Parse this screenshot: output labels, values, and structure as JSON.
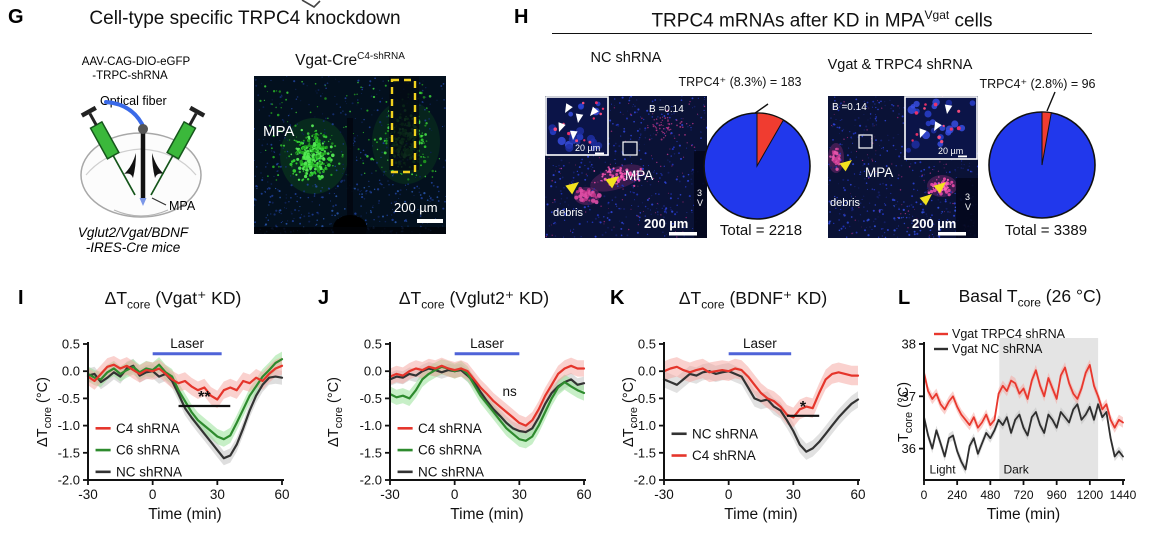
{
  "panel_g": {
    "label": "G",
    "title": "Cell-type specific TRPC4 knockdown",
    "diagram": {
      "virus_line1": "AAV-CAG-DIO-eGFP",
      "virus_line2": "-TRPC-shRNA",
      "fiber_label": "Optical fiber",
      "target_label": "MPA",
      "mouse_line1": "Vglut2/Vgat/BDNF",
      "mouse_line2": "-IRES-Cre mice"
    },
    "micrograph": {
      "title_pre": "Vgat-Cre",
      "title_sup": "C4-shRNA",
      "region_label": "MPA",
      "scalebar_label": "200 µm"
    }
  },
  "panel_h": {
    "label": "H",
    "title_pre": "TRPC4 mRNAs after KD in MPA",
    "title_sup": "Vgat",
    "title_post": " cells",
    "left": {
      "condition_label": "NC shRNA",
      "threshold_label": "B =0.14",
      "inset_scalebar_label": "20 µm",
      "region_label": "MPA",
      "debris_label": "debris",
      "scalebar_label": "200 µm",
      "ventricle_label_line1": "3",
      "ventricle_label_line2": "V"
    },
    "right": {
      "condition_label": "Vgat & TRPC4 shRNA",
      "threshold_label": "B =0.14",
      "inset_scalebar_label": "20 µm",
      "region_label": "MPA",
      "debris_label": "debris",
      "scalebar_label": "200 µm",
      "ventricle_label_line1": "3",
      "ventricle_label_line2": "V"
    }
  },
  "chart_data": [
    {
      "id": "I",
      "type": "line",
      "panel_label": "I",
      "title_pre": "ΔT",
      "title_sub": "core",
      "title_post": " (Vgat⁺ KD)",
      "ylabel_pre": "ΔT",
      "ylabel_sub": "core",
      "ylabel_post": " (°C)",
      "xlabel": "Time (min)",
      "xlim": [
        -30,
        60
      ],
      "ylim": [
        -2.0,
        0.5
      ],
      "ydec": 1,
      "xticks": [
        -30,
        0,
        30,
        60
      ],
      "yticks": [
        0.5,
        0.0,
        -0.5,
        -1.0,
        -1.5,
        -2.0
      ],
      "laser": {
        "label": "Laser",
        "x0": 0,
        "x1": 32,
        "y": 0.32,
        "color": "#4f63d8"
      },
      "legend": {
        "x0": -26.5,
        "x1": -19.5,
        "tx": -17,
        "rows": [
          {
            "label": "C4 shRNA",
            "color": "#e5352b",
            "y": -1.05
          },
          {
            "label": "C6 shRNA",
            "color": "#2e8b2e",
            "y": -1.45
          },
          {
            "label": "NC shRNA",
            "color": "#333333",
            "y": -1.85
          }
        ]
      },
      "annotations": [
        {
          "type": "sigline",
          "x0": 12,
          "x1": 36,
          "y": -0.64,
          "label": "**"
        }
      ],
      "x": [
        -30,
        -27,
        -24,
        -21,
        -18,
        -15,
        -12,
        -9,
        -6,
        -3,
        0,
        3,
        6,
        9,
        12,
        15,
        18,
        21,
        24,
        27,
        30,
        33,
        36,
        39,
        42,
        45,
        48,
        51,
        54,
        57,
        60
      ],
      "series": [
        {
          "name": "NC shRNA",
          "color": "#333333",
          "band": "#bdbdbd",
          "band_w": 0.13,
          "y": [
            -0.08,
            -0.05,
            -0.2,
            -0.12,
            -0.02,
            -0.1,
            0.05,
            0.1,
            -0.08,
            -0.02,
            0.0,
            -0.1,
            -0.05,
            -0.18,
            -0.42,
            -0.68,
            -0.85,
            -1.0,
            -1.15,
            -1.3,
            -1.45,
            -1.6,
            -1.55,
            -1.35,
            -1.05,
            -0.72,
            -0.45,
            -0.25,
            -0.12,
            -0.1,
            -0.12
          ]
        },
        {
          "name": "C6 shRNA",
          "color": "#2e8b2e",
          "band": "#8fe08f",
          "band_w": 0.14,
          "y": [
            -0.05,
            -0.12,
            -0.15,
            -0.02,
            0.05,
            -0.05,
            0.02,
            0.08,
            -0.02,
            0.05,
            0.02,
            0.12,
            -0.02,
            -0.1,
            -0.35,
            -0.55,
            -0.75,
            -0.9,
            -1.0,
            -1.1,
            -1.2,
            -1.25,
            -1.18,
            -0.95,
            -0.7,
            -0.45,
            -0.28,
            -0.1,
            0.02,
            0.15,
            0.22
          ]
        },
        {
          "name": "C4 shRNA",
          "color": "#e5352b",
          "band": "#f5a49d",
          "band_w": 0.16,
          "y": [
            -0.1,
            -0.18,
            -0.05,
            0.08,
            0.12,
            0.05,
            0.1,
            0.02,
            -0.05,
            0.02,
            0.0,
            0.05,
            -0.05,
            -0.15,
            -0.22,
            -0.18,
            -0.28,
            -0.35,
            -0.3,
            -0.45,
            -0.52,
            -0.35,
            -0.3,
            -0.35,
            -0.18,
            -0.22,
            -0.12,
            -0.18,
            -0.05,
            0.05,
            0.1
          ]
        }
      ]
    },
    {
      "id": "J",
      "type": "line",
      "panel_label": "J",
      "title_pre": "ΔT",
      "title_sub": "core",
      "title_post": " (Vglut2⁺ KD)",
      "ylabel_pre": "ΔT",
      "ylabel_sub": "core",
      "ylabel_post": " (°C)",
      "xlabel": "Time (min)",
      "xlim": [
        -30,
        60
      ],
      "ylim": [
        -2.0,
        0.5
      ],
      "ydec": 1,
      "xticks": [
        -30,
        0,
        30,
        60
      ],
      "yticks": [
        0.5,
        0.0,
        -0.5,
        -1.0,
        -1.5,
        -2.0
      ],
      "laser": {
        "label": "Laser",
        "x0": 0,
        "x1": 30,
        "y": 0.32,
        "color": "#4f63d8"
      },
      "legend": {
        "x0": -26.5,
        "x1": -19.5,
        "tx": -17,
        "rows": [
          {
            "label": "C4 shRNA",
            "color": "#e5352b",
            "y": -1.05
          },
          {
            "label": "C6 shRNA",
            "color": "#2e8b2e",
            "y": -1.45
          },
          {
            "label": "NC shRNA",
            "color": "#333333",
            "y": -1.85
          }
        ]
      },
      "annotations": [
        {
          "type": "text",
          "x": 25.5,
          "y": -0.46,
          "label": "ns"
        }
      ],
      "x": [
        -30,
        -27,
        -24,
        -21,
        -18,
        -15,
        -12,
        -9,
        -6,
        -3,
        0,
        3,
        6,
        9,
        12,
        15,
        18,
        21,
        24,
        27,
        30,
        33,
        36,
        39,
        42,
        45,
        48,
        51,
        54,
        57,
        60
      ],
      "series": [
        {
          "name": "NC shRNA",
          "color": "#333333",
          "band": "#bdbdbd",
          "band_w": 0.12,
          "y": [
            -0.15,
            -0.1,
            -0.12,
            -0.05,
            -0.08,
            0.0,
            0.05,
            0.02,
            -0.02,
            0.02,
            0.0,
            0.02,
            -0.08,
            -0.2,
            -0.38,
            -0.55,
            -0.7,
            -0.82,
            -0.95,
            -1.05,
            -1.1,
            -1.12,
            -1.05,
            -0.85,
            -0.6,
            -0.4,
            -0.28,
            -0.2,
            -0.15,
            -0.25,
            -0.22
          ]
        },
        {
          "name": "C6 shRNA",
          "color": "#2e8b2e",
          "band": "#8fe08f",
          "band_w": 0.14,
          "y": [
            -0.42,
            -0.48,
            -0.45,
            -0.5,
            -0.35,
            -0.15,
            -0.05,
            0.02,
            0.08,
            0.05,
            0.0,
            0.05,
            -0.05,
            -0.25,
            -0.45,
            -0.6,
            -0.75,
            -0.9,
            -1.05,
            -1.15,
            -1.25,
            -1.28,
            -1.2,
            -1.0,
            -0.75,
            -0.5,
            -0.3,
            -0.2,
            -0.28,
            -0.35,
            -0.4
          ]
        },
        {
          "name": "C4 shRNA",
          "color": "#e5352b",
          "band": "#f5a49d",
          "band_w": 0.15,
          "y": [
            -0.1,
            -0.05,
            -0.08,
            0.0,
            0.05,
            0.02,
            0.08,
            0.05,
            0.1,
            0.05,
            0.02,
            0.05,
            0.0,
            -0.15,
            -0.3,
            -0.42,
            -0.55,
            -0.65,
            -0.75,
            -0.85,
            -0.95,
            -1.0,
            -0.9,
            -0.7,
            -0.45,
            -0.25,
            -0.05,
            0.05,
            0.1,
            0.05,
            0.05
          ]
        }
      ]
    },
    {
      "id": "K",
      "type": "line",
      "panel_label": "K",
      "title_pre": "ΔT",
      "title_sub": "core",
      "title_post": " (BDNF⁺ KD)",
      "ylabel_pre": "ΔT",
      "ylabel_sub": "core",
      "ylabel_post": " (°C)",
      "xlabel": "Time (min)",
      "xlim": [
        -30,
        60
      ],
      "ylim": [
        -2.0,
        0.5
      ],
      "ydec": 1,
      "xticks": [
        -30,
        0,
        30,
        60
      ],
      "yticks": [
        0.5,
        0.0,
        -0.5,
        -1.0,
        -1.5,
        -2.0
      ],
      "laser": {
        "label": "Laser",
        "x0": 0,
        "x1": 29,
        "y": 0.32,
        "color": "#4f63d8"
      },
      "legend": {
        "x0": -26.5,
        "x1": -19.5,
        "tx": -17,
        "rows": [
          {
            "label": "NC shRNA",
            "color": "#333333",
            "y": -1.15
          },
          {
            "label": "C4 shRNA",
            "color": "#e5352b",
            "y": -1.55
          }
        ]
      },
      "annotations": [
        {
          "type": "sigline",
          "x0": 27,
          "x1": 42,
          "y": -0.82,
          "label": "*"
        }
      ],
      "x": [
        -30,
        -27,
        -24,
        -21,
        -18,
        -15,
        -12,
        -9,
        -6,
        -3,
        0,
        3,
        6,
        9,
        12,
        15,
        18,
        21,
        24,
        27,
        30,
        33,
        36,
        39,
        42,
        45,
        48,
        51,
        54,
        57,
        60
      ],
      "series": [
        {
          "name": "NC shRNA",
          "color": "#333333",
          "band": "#c4c4c4",
          "band_w": 0.15,
          "y": [
            -0.15,
            -0.2,
            -0.25,
            -0.15,
            -0.05,
            -0.08,
            -0.02,
            0.0,
            -0.05,
            -0.02,
            0.0,
            -0.05,
            -0.1,
            -0.3,
            -0.5,
            -0.55,
            -0.52,
            -0.65,
            -0.72,
            -0.9,
            -1.1,
            -1.35,
            -1.48,
            -1.42,
            -1.3,
            -1.15,
            -1.0,
            -0.85,
            -0.72,
            -0.6,
            -0.52
          ]
        },
        {
          "name": "C4 shRNA",
          "color": "#e5352b",
          "band": "#f5a49d",
          "band_w": 0.18,
          "y": [
            0.0,
            0.05,
            0.08,
            0.02,
            -0.02,
            0.02,
            0.05,
            -0.02,
            0.0,
            0.02,
            0.0,
            0.05,
            0.02,
            -0.1,
            -0.25,
            -0.4,
            -0.5,
            -0.55,
            -0.65,
            -0.8,
            -0.85,
            -0.7,
            -0.65,
            -0.68,
            -0.4,
            -0.15,
            -0.05,
            -0.02,
            -0.05,
            -0.08,
            -0.08
          ]
        }
      ]
    },
    {
      "id": "L",
      "type": "line",
      "panel_label": "L",
      "title_pre": "Basal T",
      "title_sub": "core",
      "title_post": " (26 °C)",
      "ylabel_pre": "T",
      "ylabel_sub": "core",
      "ylabel_post": " (°C)",
      "xlabel": "Time (min)",
      "xlim": [
        0,
        1440
      ],
      "ylim": [
        35.4,
        38
      ],
      "ydec": 0,
      "xticks": [
        0,
        240,
        480,
        720,
        960,
        1200,
        1440
      ],
      "yticks": [
        36,
        37,
        38
      ],
      "xtickfs": 12,
      "lw": 1.8,
      "shade": {
        "x0": 545,
        "x1": 1260,
        "color": "#e4e4e4"
      },
      "legend": {
        "top": true,
        "rows": [
          {
            "label": "Vgat TRPC4 shRNA",
            "color": "#e8382e"
          },
          {
            "label": "Vgat NC shRNA",
            "color": "#2e2e2e"
          }
        ]
      },
      "annotations": [
        {
          "type": "text",
          "x": 40,
          "y": 35.52,
          "label": "Light",
          "anchor": "start",
          "fs": 12
        },
        {
          "type": "text",
          "x": 575,
          "y": 35.52,
          "label": "Dark",
          "anchor": "start",
          "fs": 12
        }
      ],
      "x": [
        0,
        30,
        60,
        90,
        120,
        150,
        180,
        210,
        240,
        270,
        300,
        330,
        360,
        390,
        420,
        450,
        480,
        510,
        540,
        570,
        600,
        630,
        660,
        690,
        720,
        750,
        780,
        810,
        840,
        870,
        900,
        930,
        960,
        990,
        1020,
        1050,
        1080,
        1110,
        1140,
        1170,
        1200,
        1230,
        1260,
        1290,
        1320,
        1350,
        1380,
        1410,
        1440
      ],
      "series": [
        {
          "name": "Vgat NC shRNA",
          "color": "#2e2e2e",
          "band": "#bdbdbd",
          "band_w": 0.09,
          "y": [
            36.6,
            36.25,
            36.0,
            36.35,
            36.1,
            35.85,
            36.2,
            36.25,
            35.95,
            35.75,
            35.6,
            36.05,
            36.2,
            35.9,
            36.1,
            36.3,
            36.2,
            36.35,
            36.55,
            36.45,
            36.6,
            36.3,
            36.55,
            36.65,
            36.4,
            36.25,
            36.6,
            36.7,
            36.45,
            36.3,
            36.65,
            36.55,
            36.4,
            36.7,
            36.6,
            36.5,
            36.75,
            36.85,
            36.55,
            36.65,
            36.8,
            36.55,
            36.85,
            36.6,
            36.7,
            36.2,
            35.85,
            35.95,
            35.85
          ]
        },
        {
          "name": "Vgat TRPC4 shRNA",
          "color": "#e8382e",
          "band": "#f5a49d",
          "band_w": 0.1,
          "y": [
            37.45,
            37.1,
            36.95,
            37.05,
            36.85,
            36.75,
            36.9,
            37.0,
            36.8,
            36.65,
            36.55,
            36.45,
            36.6,
            36.4,
            36.5,
            36.65,
            36.45,
            36.55,
            37.05,
            37.2,
            37.1,
            37.3,
            37.25,
            37.05,
            37.15,
            36.95,
            37.3,
            37.5,
            37.2,
            37.0,
            37.35,
            37.15,
            36.95,
            37.4,
            37.55,
            37.25,
            37.05,
            36.95,
            37.15,
            37.45,
            37.6,
            37.2,
            37.0,
            36.75,
            36.85,
            36.55,
            36.4,
            36.55,
            36.5
          ]
        }
      ]
    },
    {
      "id": "pie_nc",
      "type": "pie",
      "label": "TRPC4⁺ (8.3%) = 183",
      "total_label": "Total = 2218",
      "slices": [
        {
          "name": "TRPC4 positive",
          "percent": 8.3,
          "count": 183,
          "color": "#f03c30"
        },
        {
          "name": "TRPC4 negative",
          "percent": 91.7,
          "color": "#2138ec"
        }
      ]
    },
    {
      "id": "pie_kd",
      "type": "pie",
      "label": "TRPC4⁺ (2.8%) = 96",
      "total_label": "Total = 3389",
      "slices": [
        {
          "name": "TRPC4 positive",
          "percent": 2.8,
          "count": 96,
          "color": "#f03c30"
        },
        {
          "name": "TRPC4 negative",
          "percent": 97.2,
          "color": "#2138ec"
        }
      ]
    }
  ]
}
